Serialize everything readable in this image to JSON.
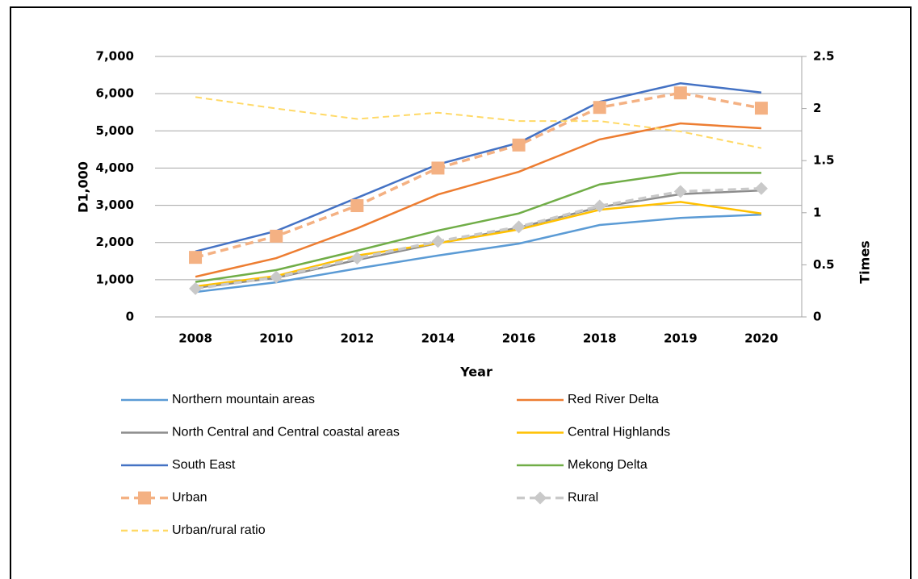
{
  "chart_data": {
    "type": "line",
    "x_label": "Year",
    "y_label": "D1,000",
    "y2_label": "Times",
    "categories": [
      "2008",
      "2010",
      "2012",
      "2014",
      "2016",
      "2018",
      "2019",
      "2020"
    ],
    "ylim": [
      0,
      7000
    ],
    "yticks": [
      0,
      {
        "value": 1000,
        "label": "1,000"
      },
      {
        "value": 2000,
        "label": "2,000"
      },
      {
        "value": 3000,
        "label": "3,000"
      },
      {
        "value": 4000,
        "label": "4,000"
      },
      {
        "value": 5000,
        "label": "5,000"
      },
      {
        "value": 6000,
        "label": "6,000"
      },
      {
        "value": 7000,
        "label": "7,000"
      }
    ],
    "y2lim": [
      0,
      2.5
    ],
    "y2ticks": [
      0,
      0.5,
      1,
      1.5,
      2,
      2.5
    ],
    "grid": true,
    "legend": "bottom",
    "series": [
      {
        "name": "Northern mountain areas",
        "color": "#5b9bd5",
        "values": [
          670,
          930,
          1300,
          1650,
          1970,
          2470,
          2660,
          2750
        ]
      },
      {
        "name": "Red River Delta",
        "color": "#ed7d31",
        "values": [
          1080,
          1580,
          2380,
          3290,
          3900,
          4770,
          5200,
          5070
        ]
      },
      {
        "name": "North Central and Central coastal areas",
        "color": "#8c8c8c",
        "values": [
          780,
          1050,
          1530,
          1980,
          2400,
          2950,
          3300,
          3400
        ]
      },
      {
        "name": "Central Highlands",
        "color": "#ffc000",
        "values": [
          820,
          1100,
          1650,
          1980,
          2350,
          2880,
          3090,
          2780
        ]
      },
      {
        "name": "South East",
        "color": "#4472c4",
        "values": [
          1760,
          2310,
          3200,
          4100,
          4680,
          5780,
          6280,
          6030
        ]
      },
      {
        "name": "Mekong Delta",
        "color": "#70ad47",
        "values": [
          940,
          1260,
          1780,
          2320,
          2780,
          3560,
          3870,
          3870
        ]
      },
      {
        "name": "Urban",
        "color": "#f4b183",
        "dashed": true,
        "marker": "square",
        "values": [
          1600,
          2170,
          2990,
          4000,
          4620,
          5630,
          6020,
          5610
        ]
      },
      {
        "name": "Rural",
        "color": "#c9c9c9",
        "dashed": true,
        "marker": "diamond",
        "values": [
          760,
          1070,
          1580,
          2030,
          2420,
          2980,
          3370,
          3450
        ]
      },
      {
        "name": "Urban/rural ratio",
        "color": "#ffd966",
        "dashed": true,
        "axis": "y2",
        "values": [
          2.11,
          2.0,
          1.9,
          1.96,
          1.88,
          1.88,
          1.78,
          1.62
        ]
      }
    ]
  }
}
